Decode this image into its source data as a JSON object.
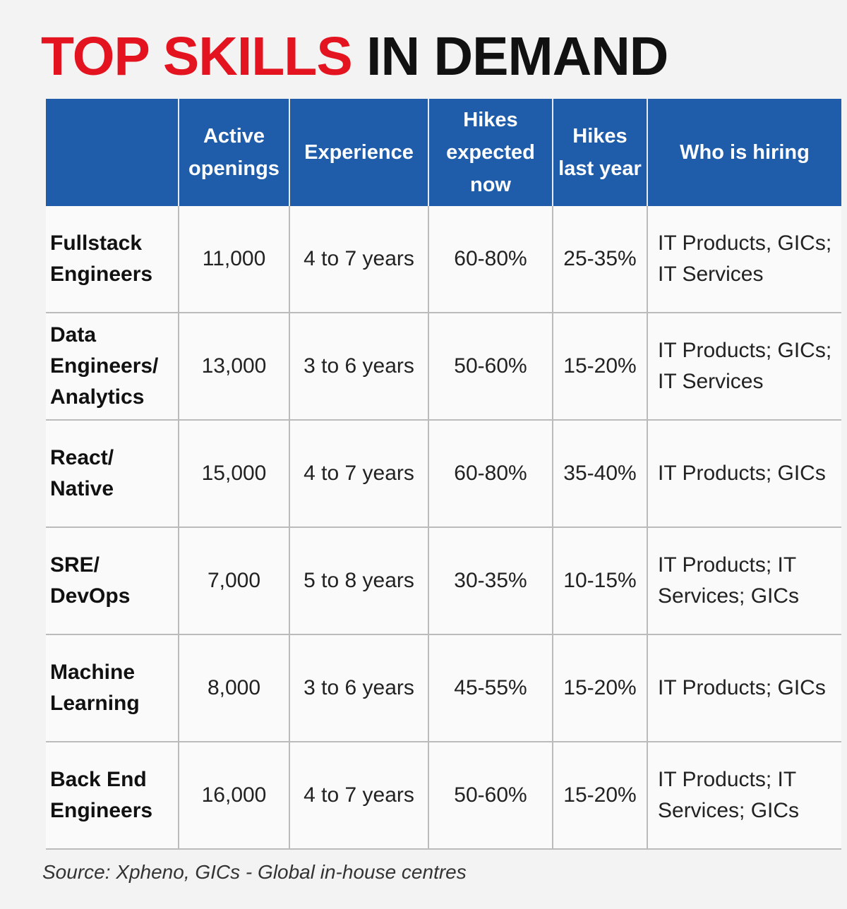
{
  "header": {
    "title_red": "TOP SKILLS",
    "title_black": "IN DEMAND"
  },
  "table": {
    "columns": [
      "",
      "Active openings",
      "Experience",
      "Hikes expected now",
      "Hikes last year",
      "Who is hiring"
    ],
    "rows": [
      [
        "Fullstack Engineers",
        "11,000",
        "4 to 7 years",
        "60-80%",
        "25-35%",
        "IT Products, GICs; IT Services"
      ],
      [
        "Data Engineers/ Analytics",
        "13,000",
        "3 to 6 years",
        "50-60%",
        "15-20%",
        "IT Products; GICs; IT Services"
      ],
      [
        "React/ Native",
        "15,000",
        "4 to 7 years",
        "60-80%",
        "35-40%",
        "IT Products; GICs"
      ],
      [
        "SRE/ DevOps",
        "7,000",
        "5 to 8 years",
        "30-35%",
        "10-15%",
        "IT Products; IT Services; GICs"
      ],
      [
        "Machine Learning",
        "8,000",
        "3 to 6 years",
        "45-55%",
        "15-20%",
        "IT Products; GICs"
      ],
      [
        "Back End Engineers",
        "16,000",
        "4 to 7 years",
        "50-60%",
        "15-20%",
        "IT Products; IT Services; GICs"
      ]
    ]
  },
  "footer": {
    "source": "Source: Xpheno, GICs - Global in-house centres"
  }
}
